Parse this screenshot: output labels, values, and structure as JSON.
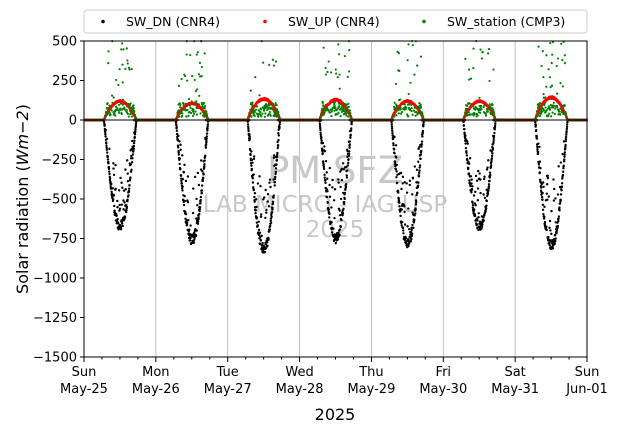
{
  "chart_data": {
    "type": "scatter",
    "title": "",
    "xlabel": "2025",
    "ylabel": "Solar radiation (Wm−2)",
    "ylabel_main": "Solar radiation (",
    "ylabel_unit": "Wm",
    "ylabel_exp": "−2",
    "ylabel_close": ")",
    "ylim": [
      -1500,
      500
    ],
    "yticks": [
      500,
      250,
      0,
      -250,
      -500,
      -750,
      -1000,
      -1250,
      -1500
    ],
    "ytick_labels": [
      "500",
      "250",
      "0",
      "−250",
      "−500",
      "−750",
      "−1000",
      "−1250",
      "−1500"
    ],
    "x_range": [
      "2025-05-25T00:00",
      "2025-06-01T00:00"
    ],
    "xticks": [
      {
        "date": "2025-05-25",
        "day": "Sun",
        "date_label": "May-25"
      },
      {
        "date": "2025-05-26",
        "day": "Mon",
        "date_label": "May-26"
      },
      {
        "date": "2025-05-27",
        "day": "Tue",
        "date_label": "May-27"
      },
      {
        "date": "2025-05-28",
        "day": "Wed",
        "date_label": "May-28"
      },
      {
        "date": "2025-05-29",
        "day": "Thu",
        "date_label": "May-29"
      },
      {
        "date": "2025-05-30",
        "day": "Fri",
        "date_label": "May-30"
      },
      {
        "date": "2025-05-31",
        "day": "Sat",
        "date_label": "May-31"
      },
      {
        "date": "2025-06-01",
        "day": "Sun",
        "date_label": "Jun-01"
      }
    ],
    "grid": "vertical",
    "legend_position": "top",
    "series": [
      {
        "name": "SW_DN (CNR4)",
        "color": "#000000"
      },
      {
        "name": "SW_UP (CNR4)",
        "color": "#ff0000"
      },
      {
        "name": "SW_station (CMP3)",
        "color": "#008000"
      }
    ],
    "daily_peak_dn": [
      -700,
      -790,
      -850,
      -780,
      -810,
      -700,
      -830
    ],
    "daily_peak_up": [
      125,
      110,
      140,
      135,
      125,
      125,
      150
    ],
    "daylight_hours": [
      "06:40",
      "17:30"
    ],
    "annotations": [
      "PM SFZ",
      "LAB MICRO - IAG USP",
      "2025"
    ]
  }
}
